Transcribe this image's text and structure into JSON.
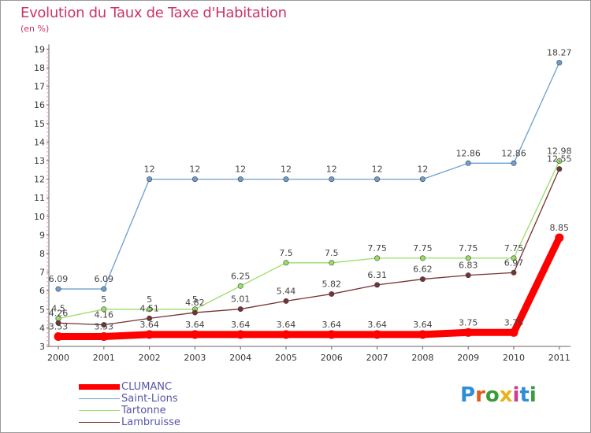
{
  "header": {
    "title": "Evolution du Taux de Taxe d'Habitation",
    "unit": "(en %)"
  },
  "logo": {
    "text": "Proxiti",
    "letter_colors": [
      "#2f8fd6",
      "#e35a1c",
      "#3a9b3a",
      "#e8b21a",
      "#d23b8b",
      "#2f8fd6",
      "#3a9b3a"
    ]
  },
  "colors": {
    "clumanc": "#ff0000",
    "saint_lions": "#6a9fcf",
    "tartonne": "#99dd66",
    "lambruisse": "#773333",
    "title": "#cc3366",
    "legend_text": "#5555aa"
  },
  "chart_data": {
    "type": "line",
    "categories": [
      "2000",
      "2001",
      "2002",
      "2003",
      "2004",
      "2005",
      "2006",
      "2007",
      "2008",
      "2009",
      "2010",
      "2011"
    ],
    "y_ticks": [
      "3",
      "4",
      "5",
      "6",
      "7",
      "8",
      "9",
      "10",
      "11",
      "12",
      "13",
      "14",
      "15",
      "16",
      "17",
      "18",
      "19"
    ],
    "ylim": [
      3,
      19
    ],
    "grid": false,
    "legend_position": "bottom-left",
    "series": [
      {
        "name": "CLUMANC",
        "values": [
          3.53,
          3.53,
          3.64,
          3.64,
          3.64,
          3.64,
          3.64,
          3.64,
          3.64,
          3.75,
          3.75,
          8.85
        ],
        "labels": [
          "3.53",
          "3.53",
          "3.64",
          "3.64",
          "3.64",
          "3.64",
          "3.64",
          "3.64",
          "3.64",
          "3.75",
          "3.75",
          "8.85"
        ],
        "color": "#ff0000"
      },
      {
        "name": "Saint-Lions",
        "values": [
          6.09,
          6.09,
          12,
          12,
          12,
          12,
          12,
          12,
          12,
          12.86,
          12.86,
          18.27
        ],
        "labels": [
          "6.09",
          "6.09",
          "12",
          "12",
          "12",
          "12",
          "12",
          "12",
          "12",
          "12.86",
          "12.86",
          "18.27"
        ],
        "color": "#6a9fcf"
      },
      {
        "name": "Tartonne",
        "values": [
          4.5,
          5,
          5,
          5,
          6.25,
          7.5,
          7.5,
          7.75,
          7.75,
          7.75,
          7.75,
          12.98
        ],
        "labels": [
          "4.5",
          "5",
          "5",
          "5",
          "6.25",
          "7.5",
          "7.5",
          "7.75",
          "7.75",
          "7.75",
          "7.75",
          "12.98"
        ],
        "color": "#99dd66"
      },
      {
        "name": "Lambruisse",
        "values": [
          4.26,
          4.16,
          4.51,
          4.82,
          5.01,
          5.44,
          5.82,
          6.31,
          6.62,
          6.83,
          6.97,
          12.55
        ],
        "labels": [
          "4.26",
          "4.16",
          "4.51",
          "4.82",
          "5.01",
          "5.44",
          "5.82",
          "6.31",
          "6.62",
          "6.83",
          "6.97",
          "12.55"
        ],
        "color": "#773333"
      }
    ]
  }
}
